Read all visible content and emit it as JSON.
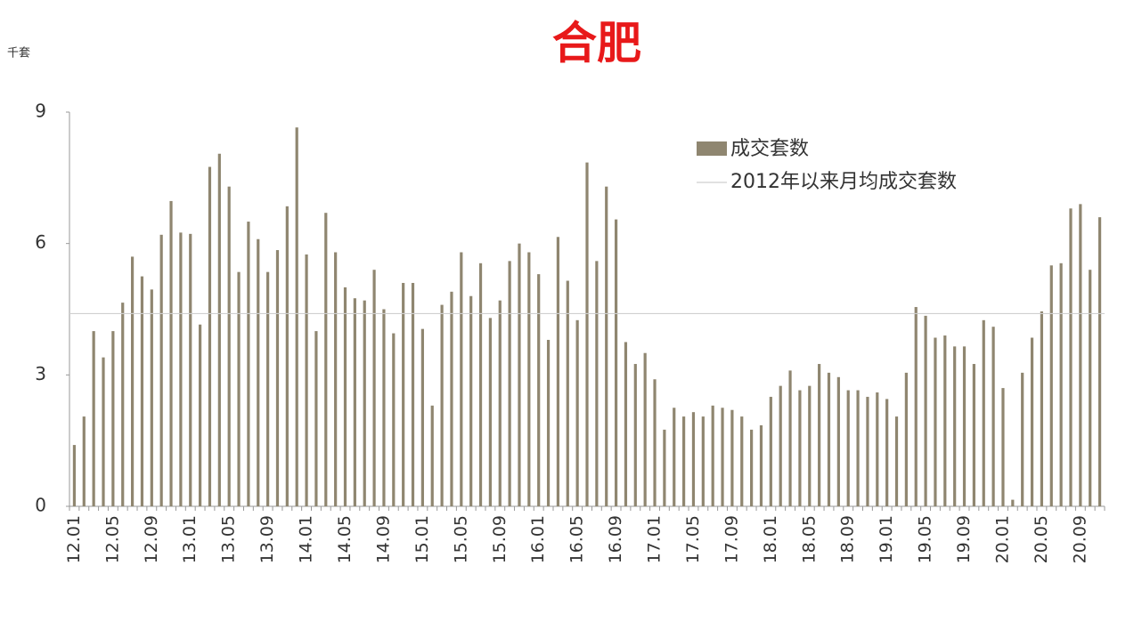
{
  "chart_data": {
    "type": "bar",
    "title": "合肥",
    "y_label": "千套",
    "categories": [
      "12.01",
      null,
      null,
      null,
      "12.05",
      null,
      null,
      null,
      "12.09",
      null,
      null,
      null,
      "13.01",
      null,
      null,
      null,
      "13.05",
      null,
      null,
      null,
      "13.09",
      null,
      null,
      null,
      "14.01",
      null,
      null,
      null,
      "14.05",
      null,
      null,
      null,
      "14.09",
      null,
      null,
      null,
      "15.01",
      null,
      null,
      null,
      "15.05",
      null,
      null,
      null,
      "15.09",
      null,
      null,
      null,
      "16.01",
      null,
      null,
      null,
      "16.05",
      null,
      null,
      null,
      "16.09",
      null,
      null,
      null,
      "17.01",
      null,
      null,
      null,
      "17.05",
      null,
      null,
      null,
      "17.09",
      null,
      null,
      null,
      "18.01",
      null,
      null,
      null,
      "18.05",
      null,
      null,
      null,
      "18.09",
      null,
      null,
      null,
      "19.01",
      null,
      null,
      null,
      "19.05",
      null,
      null,
      null,
      "19.09",
      null,
      null,
      null,
      "20.01",
      null,
      null,
      null,
      "20.05",
      null,
      null,
      null,
      "20.09",
      null,
      null
    ],
    "series": [
      {
        "name": "成交套数",
        "color": "#8f8670",
        "values": [
          1.4,
          2.05,
          4.0,
          3.4,
          4.0,
          4.65,
          5.7,
          5.25,
          4.95,
          6.2,
          6.97,
          6.25,
          6.22,
          4.15,
          7.75,
          8.05,
          7.3,
          5.35,
          6.5,
          6.1,
          5.35,
          5.85,
          6.85,
          8.65,
          5.75,
          4.0,
          6.7,
          5.8,
          5.0,
          4.75,
          4.7,
          5.4,
          4.5,
          3.95,
          5.1,
          5.1,
          4.05,
          2.3,
          4.6,
          4.9,
          5.8,
          4.8,
          5.55,
          4.3,
          4.7,
          5.6,
          6.0,
          5.8,
          5.3,
          3.8,
          6.15,
          5.15,
          4.25,
          7.85,
          5.6,
          7.3,
          6.55,
          3.75,
          3.25,
          3.5,
          2.9,
          1.75,
          2.25,
          2.05,
          2.15,
          2.05,
          2.3,
          2.25,
          2.2,
          2.05,
          1.75,
          1.85,
          2.5,
          2.75,
          3.1,
          2.65,
          2.75,
          3.25,
          3.05,
          2.95,
          2.65,
          2.65,
          2.5,
          2.6,
          2.45,
          2.05,
          3.05,
          4.55,
          4.35,
          3.85,
          3.9,
          3.65,
          3.65,
          3.25,
          4.25,
          4.1,
          2.7,
          0.15,
          3.05,
          3.85,
          4.45,
          5.5,
          5.55,
          6.8,
          6.9,
          5.4,
          6.6
        ]
      },
      {
        "name": "2012年以来月均成交套数",
        "color": "#cfcfcf",
        "type": "line",
        "value": 4.4
      }
    ],
    "ylim": [
      0,
      9
    ],
    "yticks": [
      0,
      3,
      6,
      9
    ],
    "legend": "upper right"
  }
}
